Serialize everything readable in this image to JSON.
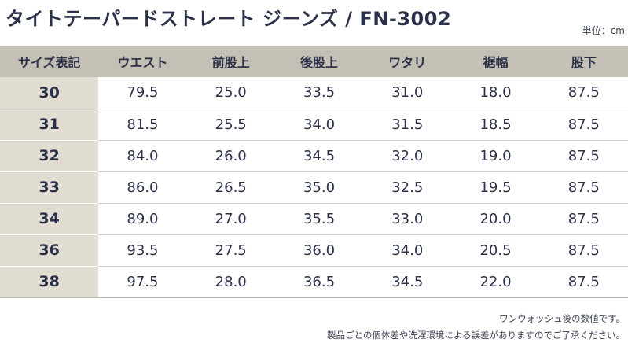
{
  "title": "タイトテーパードストレート ジーンズ / FN-3002",
  "unit_label": "単位：cm",
  "table": {
    "headers": [
      "サイズ表記",
      "ウエスト",
      "前股上",
      "後股上",
      "ワタリ",
      "裾幅",
      "股下"
    ],
    "rows": [
      [
        "30",
        "79.5",
        "25.0",
        "33.5",
        "31.0",
        "18.0",
        "87.5"
      ],
      [
        "31",
        "81.5",
        "25.5",
        "34.0",
        "31.5",
        "18.5",
        "87.5"
      ],
      [
        "32",
        "84.0",
        "26.0",
        "34.5",
        "32.0",
        "19.0",
        "87.5"
      ],
      [
        "33",
        "86.0",
        "26.5",
        "35.0",
        "32.5",
        "19.5",
        "87.5"
      ],
      [
        "34",
        "89.0",
        "27.0",
        "35.5",
        "33.0",
        "20.0",
        "87.5"
      ],
      [
        "36",
        "93.5",
        "27.5",
        "36.0",
        "34.0",
        "20.5",
        "87.5"
      ],
      [
        "38",
        "97.5",
        "28.0",
        "36.5",
        "34.5",
        "22.0",
        "87.5"
      ]
    ]
  },
  "notes": [
    "ワンウォッシュ後の数値です。",
    "製品ごとの個体差や洗濯環境による誤差がありますのでご了承ください。"
  ],
  "colors": {
    "header_bg": "#c4c0b6",
    "size_col_bg": "#e1ddd3",
    "text": "#2b3148"
  }
}
